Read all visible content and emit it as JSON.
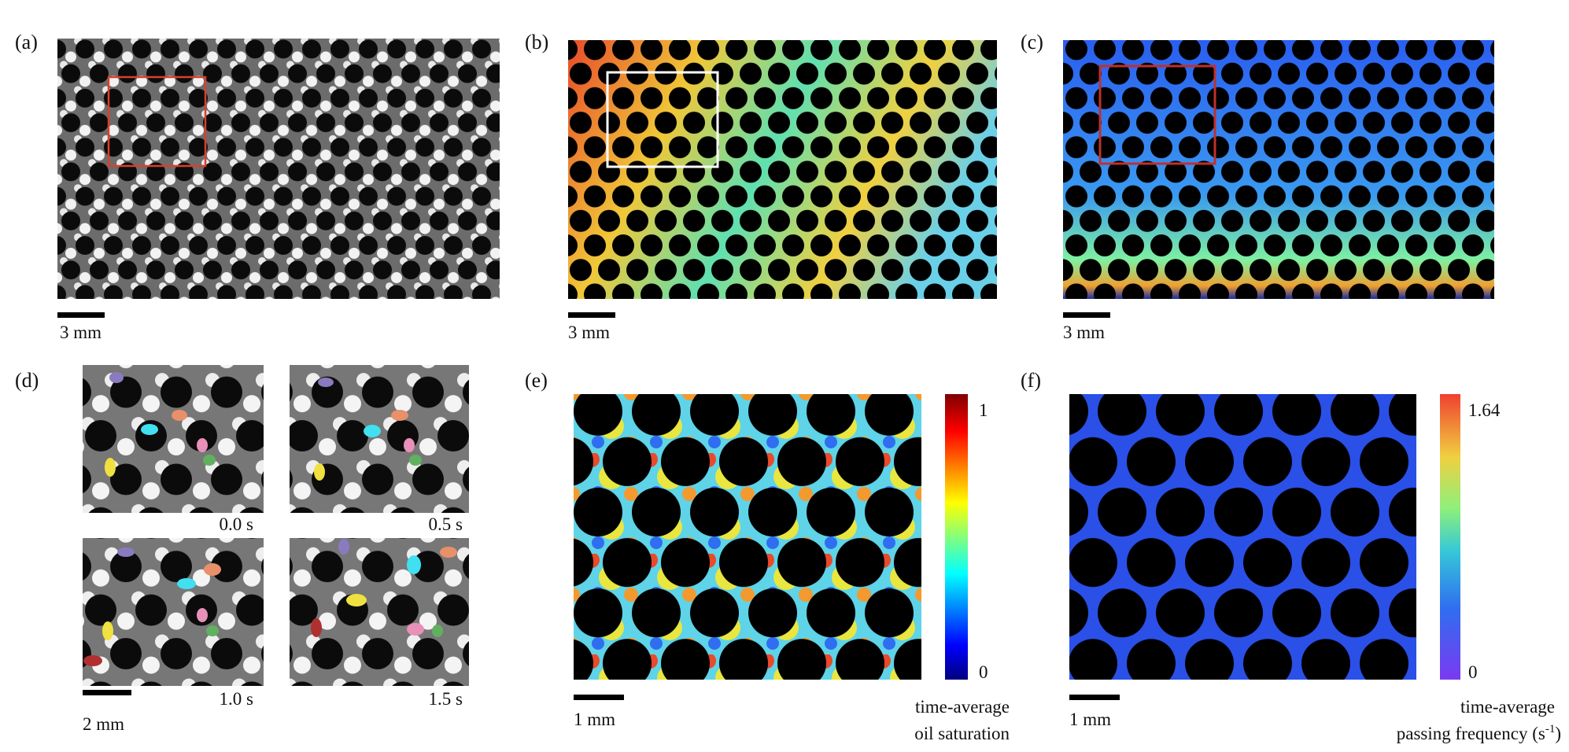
{
  "panels": [
    {
      "label": "(a)",
      "scale_bar": "3 mm"
    },
    {
      "label": "(b)",
      "scale_bar": "3 mm"
    },
    {
      "label": "(c)",
      "scale_bar": "3 mm"
    },
    {
      "label": "(d)",
      "scale_bar": "2 mm",
      "times": [
        "0.0 s",
        "0.5 s",
        "1.0 s",
        "1.5 s"
      ]
    },
    {
      "label": "(e)",
      "scale_bar": "1 mm",
      "colorbar": {
        "max": "1",
        "min": "0",
        "title": [
          "time-average",
          "oil saturation"
        ]
      }
    },
    {
      "label": "(f)",
      "scale_bar": "1 mm",
      "colorbar": {
        "max": "1.64",
        "min": "0",
        "title": [
          "time-average",
          "passing frequency (s",
          "-1",
          ")"
        ]
      }
    }
  ]
}
